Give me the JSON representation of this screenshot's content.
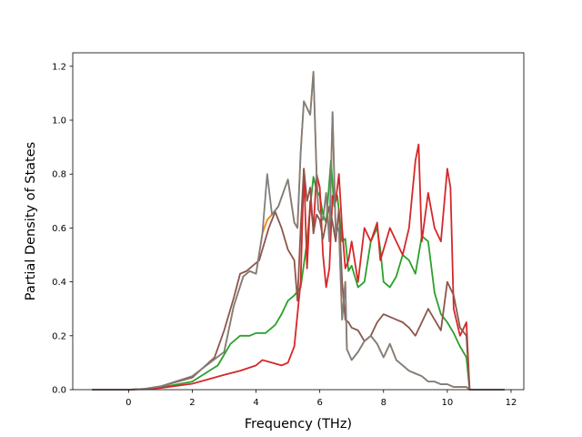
{
  "chart_data": {
    "type": "line",
    "xlabel": "Frequency (THz)",
    "ylabel": "Partial Density of States",
    "xlim": [
      -1.75,
      12.4
    ],
    "ylim": [
      0.0,
      1.25
    ],
    "xticks": [
      0,
      2,
      4,
      6,
      8,
      10,
      12
    ],
    "xtick_labels": [
      "0",
      "2",
      "4",
      "6",
      "8",
      "10",
      "12"
    ],
    "yticks": [
      0.0,
      0.2,
      0.4,
      0.6,
      0.8,
      1.0,
      1.2
    ],
    "ytick_labels": [
      "0.0",
      "0.2",
      "0.4",
      "0.6",
      "0.8",
      "1.0",
      "1.2"
    ],
    "grid": false,
    "series": [
      {
        "color": "#ff7f0e",
        "x": [
          -1.15,
          0.0,
          0.5,
          1.0,
          2.0,
          3.0,
          3.3,
          3.6,
          3.8,
          4.0,
          4.2,
          4.35,
          4.5,
          4.7,
          5.0,
          5.2,
          5.3,
          5.4,
          5.5,
          5.7,
          5.8,
          5.9,
          5.95,
          6.1,
          6.2,
          6.3,
          6.4,
          6.5,
          6.6,
          6.7,
          6.8,
          6.85,
          7.0,
          7.2,
          7.4,
          7.6,
          7.8,
          8.0,
          8.2,
          8.4,
          8.6,
          8.8,
          9.0,
          9.2,
          9.4,
          9.6,
          9.8,
          10.0,
          10.2,
          10.4,
          10.6,
          10.7,
          11.8
        ],
        "values": [
          0,
          0,
          0.003,
          0.012,
          0.05,
          0.14,
          0.31,
          0.42,
          0.44,
          0.43,
          0.58,
          0.63,
          0.65,
          0.68,
          0.78,
          0.62,
          0.6,
          0.88,
          1.07,
          1.02,
          1.18,
          0.8,
          0.67,
          0.63,
          0.73,
          0.55,
          1.03,
          0.58,
          0.6,
          0.26,
          0.4,
          0.15,
          0.11,
          0.14,
          0.18,
          0.2,
          0.17,
          0.12,
          0.17,
          0.11,
          0.09,
          0.07,
          0.06,
          0.05,
          0.03,
          0.03,
          0.02,
          0.02,
          0.01,
          0.01,
          0.01,
          0.0,
          0
        ]
      },
      {
        "color": "#2ca02c",
        "x": [
          -1.15,
          0.0,
          0.5,
          1.0,
          2.0,
          2.8,
          3.2,
          3.5,
          3.8,
          4.0,
          4.3,
          4.6,
          4.8,
          5.0,
          5.2,
          5.4,
          5.6,
          5.7,
          5.8,
          5.9,
          6.0,
          6.1,
          6.2,
          6.35,
          6.45,
          6.55,
          6.7,
          6.8,
          6.9,
          7.0,
          7.2,
          7.4,
          7.6,
          7.8,
          7.9,
          8.0,
          8.2,
          8.4,
          8.6,
          8.8,
          9.0,
          9.2,
          9.4,
          9.6,
          9.8,
          10.0,
          10.2,
          10.4,
          10.6,
          10.7,
          11.8
        ],
        "values": [
          0,
          0,
          0.002,
          0.008,
          0.03,
          0.09,
          0.17,
          0.2,
          0.2,
          0.21,
          0.21,
          0.24,
          0.28,
          0.33,
          0.35,
          0.38,
          0.55,
          0.68,
          0.79,
          0.74,
          0.72,
          0.65,
          0.62,
          0.85,
          0.68,
          0.72,
          0.55,
          0.56,
          0.44,
          0.46,
          0.38,
          0.4,
          0.55,
          0.6,
          0.52,
          0.4,
          0.38,
          0.42,
          0.5,
          0.48,
          0.43,
          0.57,
          0.55,
          0.36,
          0.28,
          0.25,
          0.21,
          0.16,
          0.12,
          0.0,
          0
        ]
      },
      {
        "color": "#d62728",
        "x": [
          -1.15,
          0.0,
          0.5,
          1.0,
          2.0,
          3.0,
          3.5,
          4.0,
          4.2,
          4.5,
          4.8,
          5.0,
          5.2,
          5.4,
          5.5,
          5.6,
          5.7,
          5.8,
          5.9,
          6.0,
          6.1,
          6.2,
          6.3,
          6.4,
          6.5,
          6.6,
          6.7,
          6.8,
          6.9,
          7.0,
          7.2,
          7.4,
          7.6,
          7.8,
          7.9,
          8.0,
          8.2,
          8.4,
          8.6,
          8.8,
          9.0,
          9.1,
          9.2,
          9.4,
          9.6,
          9.8,
          10.0,
          10.1,
          10.2,
          10.4,
          10.6,
          10.7,
          11.8
        ],
        "values": [
          0,
          0,
          0.002,
          0.006,
          0.022,
          0.055,
          0.07,
          0.09,
          0.11,
          0.1,
          0.09,
          0.1,
          0.16,
          0.4,
          0.82,
          0.45,
          0.7,
          0.6,
          0.8,
          0.75,
          0.5,
          0.38,
          0.45,
          0.72,
          0.7,
          0.8,
          0.6,
          0.45,
          0.48,
          0.55,
          0.4,
          0.6,
          0.55,
          0.62,
          0.48,
          0.52,
          0.6,
          0.55,
          0.5,
          0.6,
          0.85,
          0.91,
          0.55,
          0.73,
          0.6,
          0.55,
          0.82,
          0.75,
          0.3,
          0.2,
          0.25,
          0.0,
          0
        ]
      },
      {
        "color": "#8c564b",
        "x": [
          -1.15,
          0.0,
          0.5,
          1.0,
          2.0,
          2.7,
          3.0,
          3.3,
          3.5,
          3.7,
          3.9,
          4.1,
          4.3,
          4.4,
          4.6,
          4.8,
          5.0,
          5.2,
          5.3,
          5.4,
          5.5,
          5.6,
          5.7,
          5.8,
          5.9,
          6.0,
          6.1,
          6.2,
          6.3,
          6.4,
          6.5,
          6.6,
          6.7,
          6.8,
          6.9,
          7.0,
          7.2,
          7.4,
          7.6,
          7.8,
          8.0,
          8.2,
          8.4,
          8.6,
          8.8,
          9.0,
          9.2,
          9.4,
          9.6,
          9.8,
          10.0,
          10.2,
          10.4,
          10.6,
          10.7,
          11.8
        ],
        "values": [
          0,
          0,
          0.003,
          0.012,
          0.045,
          0.12,
          0.22,
          0.34,
          0.43,
          0.44,
          0.46,
          0.48,
          0.56,
          0.6,
          0.66,
          0.6,
          0.52,
          0.48,
          0.33,
          0.6,
          0.82,
          0.7,
          0.75,
          0.58,
          0.65,
          0.63,
          0.56,
          0.62,
          0.68,
          0.62,
          0.55,
          0.67,
          0.4,
          0.26,
          0.25,
          0.23,
          0.22,
          0.18,
          0.2,
          0.25,
          0.28,
          0.27,
          0.26,
          0.25,
          0.23,
          0.2,
          0.25,
          0.3,
          0.26,
          0.22,
          0.4,
          0.35,
          0.23,
          0.2,
          0.0,
          0
        ]
      },
      {
        "color": "#7f7f7f",
        "x": [
          -1.15,
          0.0,
          0.5,
          1.0,
          2.0,
          3.0,
          3.3,
          3.6,
          3.8,
          4.0,
          4.2,
          4.35,
          4.5,
          4.7,
          5.0,
          5.2,
          5.3,
          5.4,
          5.5,
          5.7,
          5.8,
          5.9,
          5.95,
          6.1,
          6.2,
          6.3,
          6.4,
          6.5,
          6.6,
          6.7,
          6.8,
          6.85,
          7.0,
          7.2,
          7.4,
          7.6,
          7.8,
          8.0,
          8.2,
          8.4,
          8.6,
          8.8,
          9.0,
          9.2,
          9.4,
          9.6,
          9.8,
          10.0,
          10.2,
          10.4,
          10.6,
          10.7,
          11.8
        ],
        "values": [
          0,
          0,
          0.003,
          0.012,
          0.05,
          0.14,
          0.31,
          0.42,
          0.44,
          0.43,
          0.58,
          0.8,
          0.65,
          0.68,
          0.78,
          0.62,
          0.6,
          0.88,
          1.07,
          1.02,
          1.18,
          0.8,
          0.67,
          0.63,
          0.73,
          0.55,
          1.03,
          0.58,
          0.6,
          0.26,
          0.4,
          0.15,
          0.11,
          0.14,
          0.18,
          0.2,
          0.17,
          0.12,
          0.17,
          0.11,
          0.09,
          0.07,
          0.06,
          0.05,
          0.03,
          0.03,
          0.02,
          0.02,
          0.01,
          0.01,
          0.01,
          0.0,
          0
        ]
      }
    ]
  }
}
